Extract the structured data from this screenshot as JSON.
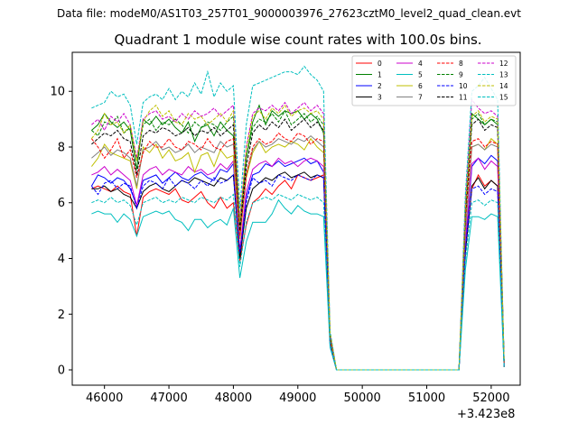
{
  "chart_data": {
    "type": "line",
    "suptitle": "Data file: modeM0/AS1T03_257T01_9000003976_27623cztM0_level2_quad_clean.evt",
    "title": "Quadrant 1 module wise count rates with 100.0s bins.",
    "xlabel": "",
    "ylabel": "",
    "x_offset_label": "+3.423e8",
    "xlim": [
      45500,
      52450
    ],
    "ylim": [
      -0.55,
      11.4
    ],
    "x_ticks": [
      46000,
      47000,
      48000,
      49000,
      50000,
      51000,
      52000
    ],
    "x_tick_labels": [
      "46000",
      "47000",
      "48000",
      "49000",
      "50000",
      "51000",
      "52000"
    ],
    "y_ticks": [
      0,
      2,
      4,
      6,
      8,
      10
    ],
    "y_tick_labels": [
      "0",
      "2",
      "4",
      "6",
      "8",
      "10"
    ],
    "grid": false,
    "legend_placement": "upper-right",
    "legend_columns": 4,
    "x": [
      45800,
      45900,
      46000,
      46100,
      46200,
      46300,
      46400,
      46500,
      46600,
      46700,
      46800,
      46900,
      47000,
      47100,
      47200,
      47300,
      47400,
      47500,
      47600,
      47700,
      47800,
      47900,
      48000,
      48100,
      48200,
      48300,
      48400,
      48500,
      48600,
      48700,
      48800,
      48900,
      49000,
      49100,
      49200,
      49300,
      49400,
      49500,
      49600,
      49700,
      49800,
      49900,
      50000,
      50100,
      50200,
      50300,
      50400,
      50500,
      50600,
      50700,
      50800,
      50900,
      51000,
      51100,
      51200,
      51300,
      51400,
      51500,
      51600,
      51700,
      51800,
      51900,
      52000,
      52100,
      52200
    ],
    "series": [
      {
        "name": "0",
        "color": "#ff0000",
        "dash": "solid",
        "values": [
          6.5,
          6.6,
          6.5,
          6.4,
          6.6,
          6.4,
          6.3,
          4.8,
          6.2,
          6.4,
          6.5,
          6.4,
          6.3,
          6.5,
          6.1,
          6.0,
          6.2,
          6.4,
          6.0,
          5.8,
          6.2,
          5.8,
          6.0,
          3.9,
          5.2,
          6.0,
          6.2,
          6.5,
          6.3,
          6.6,
          6.8,
          6.5,
          7.0,
          6.9,
          6.8,
          6.9,
          7.0,
          1.0,
          0.0,
          0.0,
          0.0,
          0.0,
          0.0,
          0.0,
          0.0,
          0.0,
          0.0,
          0.0,
          0.0,
          0.0,
          0.0,
          0.0,
          0.0,
          0.0,
          0.0,
          0.0,
          0.0,
          0.0,
          4.2,
          6.5,
          7.0,
          6.6,
          6.8,
          6.6,
          0.1
        ]
      },
      {
        "name": "1",
        "color": "#008000",
        "dash": "solid",
        "values": [
          8.6,
          8.8,
          9.2,
          8.9,
          8.7,
          8.9,
          8.6,
          7.2,
          9.0,
          8.8,
          9.1,
          8.8,
          9.0,
          8.7,
          8.5,
          8.9,
          8.2,
          8.7,
          8.8,
          8.4,
          8.9,
          8.6,
          8.4,
          5.2,
          7.6,
          8.9,
          9.5,
          8.8,
          9.3,
          9.1,
          9.3,
          9.2,
          9.3,
          9.0,
          9.2,
          9.0,
          8.5,
          1.2,
          0.0,
          0.0,
          0.0,
          0.0,
          0.0,
          0.0,
          0.0,
          0.0,
          0.0,
          0.0,
          0.0,
          0.0,
          0.0,
          0.0,
          0.0,
          0.0,
          0.0,
          0.0,
          0.0,
          0.0,
          5.5,
          9.2,
          9.0,
          8.8,
          9.0,
          8.8,
          0.3
        ]
      },
      {
        "name": "2",
        "color": "#0000ff",
        "dash": "solid",
        "values": [
          6.6,
          7.0,
          6.9,
          6.7,
          6.9,
          6.8,
          6.5,
          5.9,
          6.8,
          6.9,
          7.0,
          6.7,
          6.9,
          7.1,
          6.9,
          6.8,
          7.0,
          7.1,
          6.9,
          6.8,
          7.2,
          7.1,
          7.4,
          4.2,
          6.2,
          7.0,
          7.1,
          7.4,
          7.3,
          7.5,
          7.3,
          7.4,
          7.5,
          7.6,
          7.4,
          7.5,
          7.1,
          1.0,
          0.0,
          0.0,
          0.0,
          0.0,
          0.0,
          0.0,
          0.0,
          0.0,
          0.0,
          0.0,
          0.0,
          0.0,
          0.0,
          0.0,
          0.0,
          0.0,
          0.0,
          0.0,
          0.0,
          0.0,
          4.4,
          7.3,
          7.6,
          7.4,
          7.7,
          7.5,
          0.2
        ]
      },
      {
        "name": "3",
        "color": "#000000",
        "dash": "solid",
        "values": [
          6.5,
          6.5,
          6.6,
          6.4,
          6.5,
          6.3,
          6.2,
          5.8,
          6.4,
          6.6,
          6.7,
          6.5,
          6.4,
          6.6,
          6.8,
          6.7,
          6.9,
          6.8,
          6.7,
          6.6,
          6.9,
          6.8,
          7.0,
          4.0,
          5.8,
          6.5,
          6.7,
          6.9,
          6.8,
          7.0,
          7.1,
          6.9,
          7.0,
          7.1,
          6.9,
          7.0,
          6.9,
          0.9,
          0.0,
          0.0,
          0.0,
          0.0,
          0.0,
          0.0,
          0.0,
          0.0,
          0.0,
          0.0,
          0.0,
          0.0,
          0.0,
          0.0,
          0.0,
          0.0,
          0.0,
          0.0,
          0.0,
          0.0,
          4.2,
          6.6,
          6.9,
          6.5,
          6.8,
          6.6,
          0.1
        ]
      },
      {
        "name": "4",
        "color": "#cc00cc",
        "dash": "solid",
        "values": [
          7.0,
          7.1,
          7.3,
          7.0,
          7.2,
          7.0,
          6.8,
          5.9,
          7.0,
          7.2,
          7.3,
          7.0,
          7.2,
          7.1,
          7.0,
          7.3,
          7.1,
          7.2,
          7.0,
          7.1,
          7.4,
          7.2,
          7.5,
          4.3,
          6.4,
          7.2,
          7.4,
          7.5,
          7.3,
          7.6,
          7.4,
          7.5,
          7.3,
          7.5,
          7.6,
          7.5,
          7.3,
          1.0,
          0.0,
          0.0,
          0.0,
          0.0,
          0.0,
          0.0,
          0.0,
          0.0,
          0.0,
          0.0,
          0.0,
          0.0,
          0.0,
          0.0,
          0.0,
          0.0,
          0.0,
          0.0,
          0.0,
          0.0,
          4.6,
          7.4,
          7.6,
          7.2,
          7.5,
          7.3,
          0.2
        ]
      },
      {
        "name": "5",
        "color": "#00bfbf",
        "dash": "solid",
        "values": [
          5.6,
          5.7,
          5.6,
          5.6,
          5.3,
          5.6,
          5.4,
          4.8,
          5.5,
          5.6,
          5.7,
          5.6,
          5.7,
          5.4,
          5.3,
          5.0,
          5.4,
          5.4,
          5.1,
          5.3,
          5.4,
          5.2,
          5.8,
          3.3,
          4.6,
          5.3,
          5.3,
          5.3,
          5.6,
          6.1,
          5.8,
          5.6,
          5.9,
          5.7,
          5.6,
          5.6,
          5.5,
          0.8,
          0.0,
          0.0,
          0.0,
          0.0,
          0.0,
          0.0,
          0.0,
          0.0,
          0.0,
          0.0,
          0.0,
          0.0,
          0.0,
          0.0,
          0.0,
          0.0,
          0.0,
          0.0,
          0.0,
          0.0,
          3.6,
          5.5,
          5.5,
          5.4,
          5.6,
          5.5,
          0.1
        ]
      },
      {
        "name": "6",
        "color": "#bfbf00",
        "dash": "solid",
        "values": [
          7.3,
          7.6,
          8.1,
          7.8,
          7.7,
          7.6,
          7.5,
          6.5,
          8.0,
          7.8,
          8.1,
          7.6,
          7.9,
          7.5,
          7.6,
          7.8,
          7.1,
          7.7,
          7.8,
          7.3,
          7.9,
          7.6,
          7.7,
          4.7,
          6.9,
          7.8,
          8.2,
          7.8,
          8.0,
          8.1,
          8.0,
          8.2,
          8.1,
          7.9,
          8.3,
          8.0,
          7.8,
          1.1,
          0.0,
          0.0,
          0.0,
          0.0,
          0.0,
          0.0,
          0.0,
          0.0,
          0.0,
          0.0,
          0.0,
          0.0,
          0.0,
          0.0,
          0.0,
          0.0,
          0.0,
          0.0,
          0.0,
          0.0,
          5.0,
          8.0,
          8.1,
          7.9,
          8.3,
          8.1,
          0.2
        ]
      },
      {
        "name": "7",
        "color": "#808080",
        "dash": "solid",
        "values": [
          7.6,
          7.8,
          8.0,
          7.7,
          7.9,
          7.8,
          7.6,
          6.6,
          7.9,
          8.0,
          8.2,
          7.9,
          8.0,
          7.8,
          7.9,
          8.1,
          7.8,
          8.0,
          7.9,
          7.8,
          8.2,
          8.0,
          8.1,
          4.8,
          7.0,
          7.9,
          8.2,
          8.0,
          8.1,
          8.3,
          8.2,
          8.1,
          8.3,
          8.2,
          8.4,
          8.2,
          8.0,
          1.1,
          0.0,
          0.0,
          0.0,
          0.0,
          0.0,
          0.0,
          0.0,
          0.0,
          0.0,
          0.0,
          0.0,
          0.0,
          0.0,
          0.0,
          0.0,
          0.0,
          0.0,
          0.0,
          0.0,
          0.0,
          5.0,
          8.0,
          8.1,
          7.9,
          8.1,
          8.0,
          0.2
        ]
      },
      {
        "name": "8",
        "color": "#ff0000",
        "dash": "dashed",
        "values": [
          8.3,
          8.0,
          7.6,
          7.9,
          8.3,
          7.6,
          7.9,
          6.9,
          7.8,
          8.2,
          8.0,
          8.0,
          8.3,
          8.0,
          7.9,
          8.2,
          8.1,
          7.9,
          8.3,
          8.0,
          7.9,
          8.2,
          8.3,
          4.8,
          7.0,
          8.0,
          8.3,
          8.1,
          8.2,
          8.5,
          8.3,
          8.2,
          8.5,
          8.4,
          8.1,
          8.3,
          8.2,
          1.1,
          0.0,
          0.0,
          0.0,
          0.0,
          0.0,
          0.0,
          0.0,
          0.0,
          0.0,
          0.0,
          0.0,
          0.0,
          0.0,
          0.0,
          0.0,
          0.0,
          0.0,
          0.0,
          0.0,
          0.0,
          5.4,
          8.2,
          8.3,
          8.0,
          8.2,
          8.1,
          0.2
        ]
      },
      {
        "name": "9",
        "color": "#008000",
        "dash": "dashed",
        "values": [
          8.6,
          8.4,
          8.9,
          8.8,
          9.1,
          8.5,
          8.7,
          7.5,
          8.8,
          9.0,
          8.6,
          8.9,
          8.8,
          9.0,
          8.8,
          8.5,
          8.9,
          8.7,
          8.9,
          8.8,
          8.6,
          8.9,
          9.1,
          5.2,
          7.6,
          8.7,
          9.0,
          8.9,
          9.2,
          8.9,
          9.3,
          8.8,
          9.0,
          9.2,
          8.9,
          9.1,
          8.8,
          1.2,
          0.0,
          0.0,
          0.0,
          0.0,
          0.0,
          0.0,
          0.0,
          0.0,
          0.0,
          0.0,
          0.0,
          0.0,
          0.0,
          0.0,
          0.0,
          0.0,
          0.0,
          0.0,
          0.0,
          0.0,
          5.7,
          9.0,
          9.2,
          8.8,
          9.0,
          8.9,
          0.3
        ]
      },
      {
        "name": "10",
        "color": "#0000ff",
        "dash": "dashed",
        "values": [
          6.6,
          6.3,
          6.7,
          6.8,
          6.5,
          6.7,
          6.6,
          5.8,
          6.6,
          6.8,
          6.7,
          6.5,
          6.9,
          6.6,
          6.8,
          6.7,
          6.5,
          6.8,
          6.6,
          6.9,
          6.7,
          6.8,
          7.0,
          4.2,
          6.0,
          6.9,
          6.7,
          6.8,
          6.6,
          7.0,
          6.9,
          6.8,
          7.0,
          6.9,
          6.8,
          7.0,
          6.9,
          0.9,
          0.0,
          0.0,
          0.0,
          0.0,
          0.0,
          0.0,
          0.0,
          0.0,
          0.0,
          0.0,
          0.0,
          0.0,
          0.0,
          0.0,
          0.0,
          0.0,
          0.0,
          0.0,
          0.0,
          0.0,
          4.3,
          6.5,
          6.6,
          6.3,
          6.5,
          6.4,
          0.1
        ]
      },
      {
        "name": "11",
        "color": "#000000",
        "dash": "dashed",
        "values": [
          8.1,
          8.3,
          8.5,
          8.4,
          8.6,
          8.3,
          8.2,
          7.0,
          8.4,
          8.6,
          8.5,
          8.7,
          8.6,
          8.4,
          8.5,
          8.7,
          8.4,
          8.6,
          8.5,
          8.7,
          8.4,
          8.6,
          8.8,
          5.0,
          7.3,
          8.5,
          8.8,
          8.6,
          8.9,
          8.7,
          9.0,
          8.6,
          8.8,
          9.0,
          8.7,
          8.9,
          8.6,
          1.2,
          0.0,
          0.0,
          0.0,
          0.0,
          0.0,
          0.0,
          0.0,
          0.0,
          0.0,
          0.0,
          0.0,
          0.0,
          0.0,
          0.0,
          0.0,
          0.0,
          0.0,
          0.0,
          0.0,
          0.0,
          5.6,
          8.8,
          9.0,
          8.6,
          8.8,
          8.7,
          0.3
        ]
      },
      {
        "name": "12",
        "color": "#cc00cc",
        "dash": "dashed",
        "values": [
          8.8,
          9.0,
          8.6,
          9.1,
          8.9,
          9.2,
          8.8,
          7.6,
          9.0,
          9.2,
          9.3,
          9.0,
          9.1,
          8.9,
          9.2,
          9.0,
          9.3,
          9.1,
          9.2,
          9.4,
          9.1,
          9.3,
          9.5,
          5.4,
          8.0,
          9.2,
          9.4,
          9.3,
          9.5,
          9.3,
          9.6,
          9.2,
          9.4,
          9.6,
          9.3,
          9.5,
          9.2,
          1.3,
          0.0,
          0.0,
          0.0,
          0.0,
          0.0,
          0.0,
          0.0,
          0.0,
          0.0,
          0.0,
          0.0,
          0.0,
          0.0,
          0.0,
          0.0,
          0.0,
          0.0,
          0.0,
          0.0,
          0.0,
          6.0,
          9.7,
          9.4,
          9.2,
          9.3,
          9.1,
          0.3
        ]
      },
      {
        "name": "13",
        "color": "#00bfbf",
        "dash": "dashed",
        "values": [
          9.4,
          9.5,
          9.6,
          10.0,
          9.8,
          9.9,
          9.5,
          8.1,
          9.6,
          9.8,
          9.9,
          9.7,
          10.1,
          9.7,
          10.0,
          9.8,
          10.3,
          9.9,
          10.7,
          9.8,
          10.3,
          10.0,
          10.2,
          5.8,
          8.8,
          10.2,
          10.3,
          10.4,
          10.5,
          10.6,
          10.7,
          10.7,
          10.6,
          10.9,
          10.6,
          10.4,
          10.0,
          1.4,
          0.0,
          0.0,
          0.0,
          0.0,
          0.0,
          0.0,
          0.0,
          0.0,
          0.0,
          0.0,
          0.0,
          0.0,
          0.0,
          0.0,
          0.0,
          0.0,
          0.0,
          0.0,
          0.0,
          0.0,
          6.3,
          10.0,
          10.2,
          10.5,
          10.1,
          9.7,
          0.3
        ]
      },
      {
        "name": "14",
        "color": "#bfbf00",
        "dash": "dashed",
        "values": [
          8.3,
          8.6,
          9.2,
          8.8,
          8.9,
          8.5,
          8.8,
          7.5,
          8.9,
          9.3,
          9.5,
          9.1,
          9.3,
          8.9,
          8.8,
          9.2,
          9.0,
          9.1,
          8.8,
          9.0,
          9.2,
          8.9,
          9.3,
          5.3,
          7.9,
          9.1,
          9.3,
          9.0,
          9.4,
          9.2,
          9.5,
          9.1,
          9.3,
          9.4,
          9.2,
          9.3,
          9.0,
          1.3,
          0.0,
          0.0,
          0.0,
          0.0,
          0.0,
          0.0,
          0.0,
          0.0,
          0.0,
          0.0,
          0.0,
          0.0,
          0.0,
          0.0,
          0.0,
          0.0,
          0.0,
          0.0,
          0.0,
          0.0,
          5.8,
          9.1,
          9.3,
          8.9,
          9.1,
          9.0,
          0.3
        ]
      },
      {
        "name": "15",
        "color": "#00bfbf",
        "dash": "dashed",
        "values": [
          6.0,
          6.1,
          6.0,
          6.2,
          6.0,
          6.1,
          5.9,
          5.2,
          6.0,
          6.1,
          6.2,
          6.0,
          6.1,
          6.0,
          6.2,
          6.1,
          6.0,
          6.2,
          6.1,
          6.0,
          6.2,
          6.1,
          6.3,
          3.7,
          5.3,
          6.0,
          6.1,
          6.2,
          6.1,
          6.3,
          6.2,
          6.1,
          6.3,
          6.2,
          6.1,
          6.2,
          6.0,
          0.9,
          0.0,
          0.0,
          0.0,
          0.0,
          0.0,
          0.0,
          0.0,
          0.0,
          0.0,
          0.0,
          0.0,
          0.0,
          0.0,
          0.0,
          0.0,
          0.0,
          0.0,
          0.0,
          0.0,
          0.0,
          3.9,
          6.0,
          6.1,
          5.9,
          6.1,
          6.0,
          0.1
        ]
      }
    ]
  }
}
